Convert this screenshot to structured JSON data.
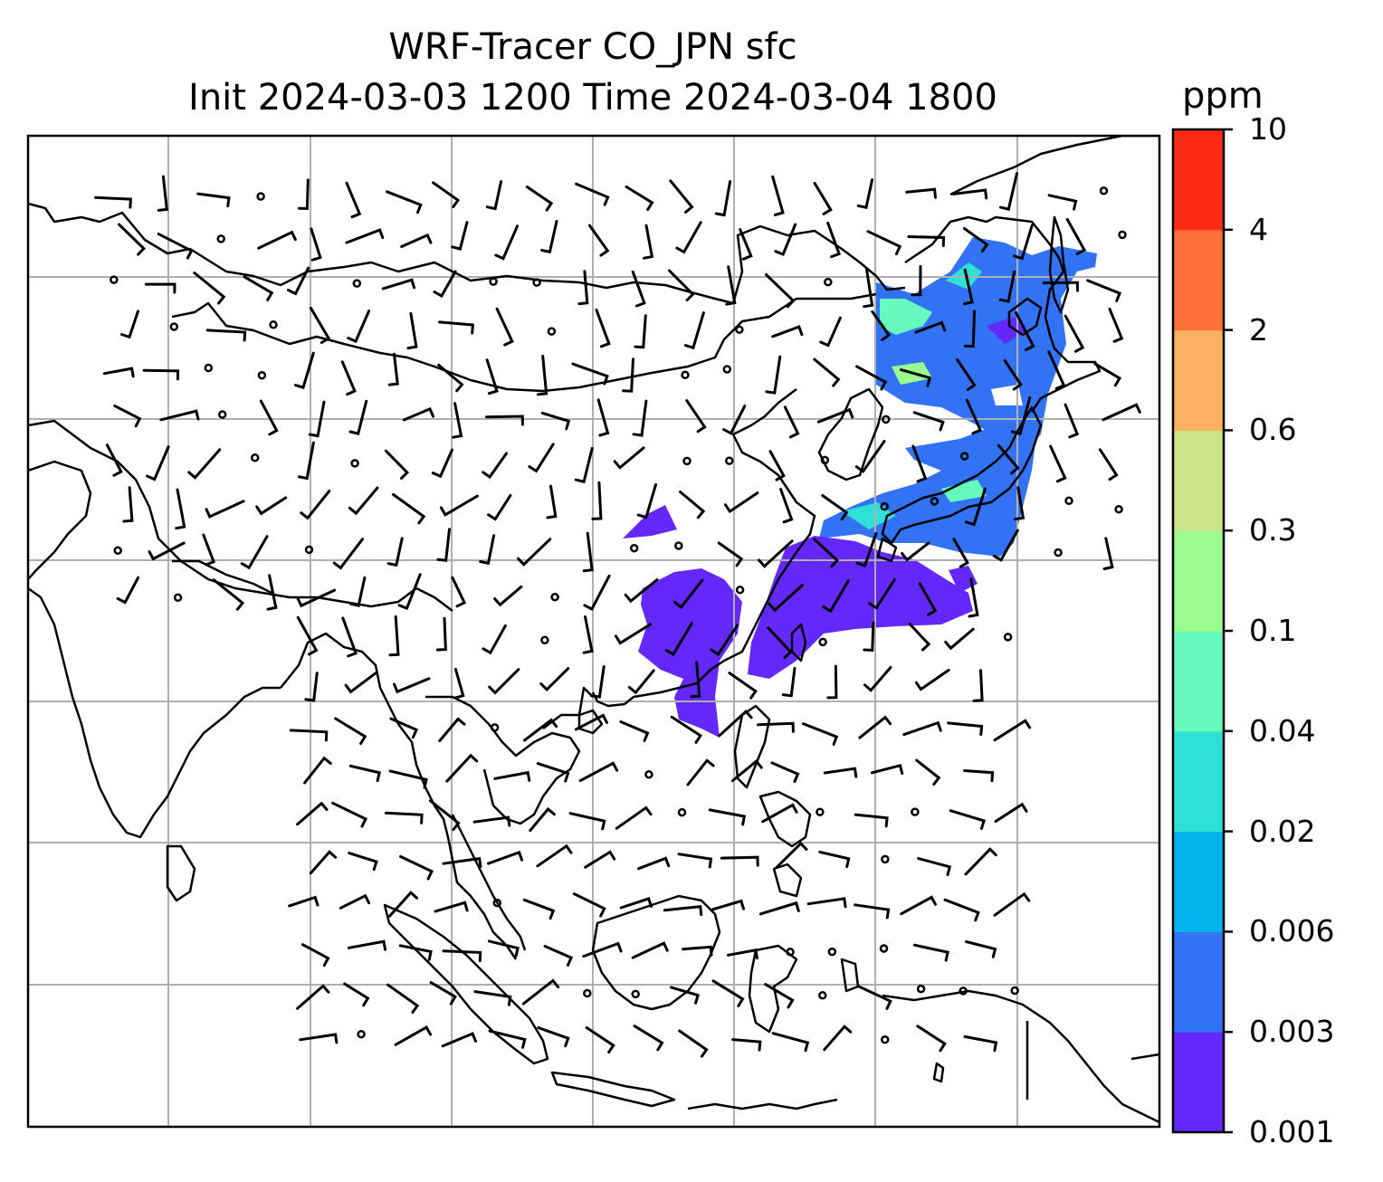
{
  "title": {
    "line1": "WRF-Tracer CO_JPN sfc",
    "line2": "Init 2024-03-03 1200 Time 2024-03-04 1800"
  },
  "colorbar": {
    "unit": "ppm",
    "levels": [
      "0.001",
      "0.003",
      "0.006",
      "0.02",
      "0.04",
      "0.1",
      "0.3",
      "0.6",
      "2",
      "4",
      "10"
    ],
    "colors": [
      "#6429fa",
      "#3173f4",
      "#01b3ec",
      "#2ee0d6",
      "#66fabe",
      "#9afb8e",
      "#cde387",
      "#fdb160",
      "#fe7037",
      "#ff2a15"
    ]
  },
  "map": {
    "land_outline_color": "#000000",
    "gridline_color": "#b0b0b0",
    "wind_symbol_color": "#000000",
    "plume_regions": [
      {
        "name": "northeast-asia-plume",
        "dominant_band": "0.006"
      },
      {
        "name": "japan-plume",
        "dominant_band": "0.006"
      },
      {
        "name": "east-china-plume",
        "dominant_band": "0.001"
      },
      {
        "name": "south-china-plume",
        "dominant_band": "0.001"
      }
    ]
  }
}
